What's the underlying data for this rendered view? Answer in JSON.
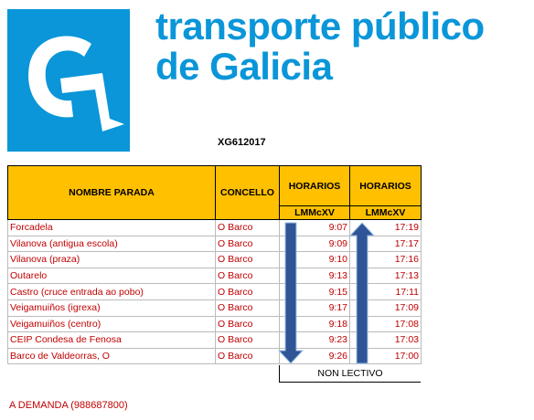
{
  "header": {
    "title_line1": "transporte público",
    "title_line2": "de Galicia"
  },
  "route_code": "XG612017",
  "table": {
    "columns": [
      "NOMBRE PARADA",
      "CONCELLO",
      "HORARIOS",
      "HORARIOS"
    ],
    "days": [
      "LMMcXV",
      "LMMcXV"
    ],
    "rows": [
      [
        "Forcadela",
        "O Barco",
        "9:07",
        "17:19"
      ],
      [
        "Vilanova (antigua escola)",
        "O Barco",
        "9:09",
        "17:17"
      ],
      [
        "Vilanova (praza)",
        "O Barco",
        "9:10",
        "17:16"
      ],
      [
        "Outarelo",
        "O Barco",
        "9:13",
        "17:13"
      ],
      [
        "Castro (cruce entrada ao pobo)",
        "O Barco",
        "9:15",
        "17:11"
      ],
      [
        "Veigamuiños (igrexa)",
        "O Barco",
        "9:17",
        "17:09"
      ],
      [
        "Veigamuiños (centro)",
        "O Barco",
        "9:18",
        "17:08"
      ],
      [
        "CEIP Condesa de Fenosa",
        "O Barco",
        "9:23",
        "17:03"
      ],
      [
        "Barco de Valdeorras, O",
        "O Barco",
        "9:26",
        "17:00"
      ]
    ]
  },
  "note": "NON LECTIVO",
  "footer": "A DEMANDA (988687800)"
}
